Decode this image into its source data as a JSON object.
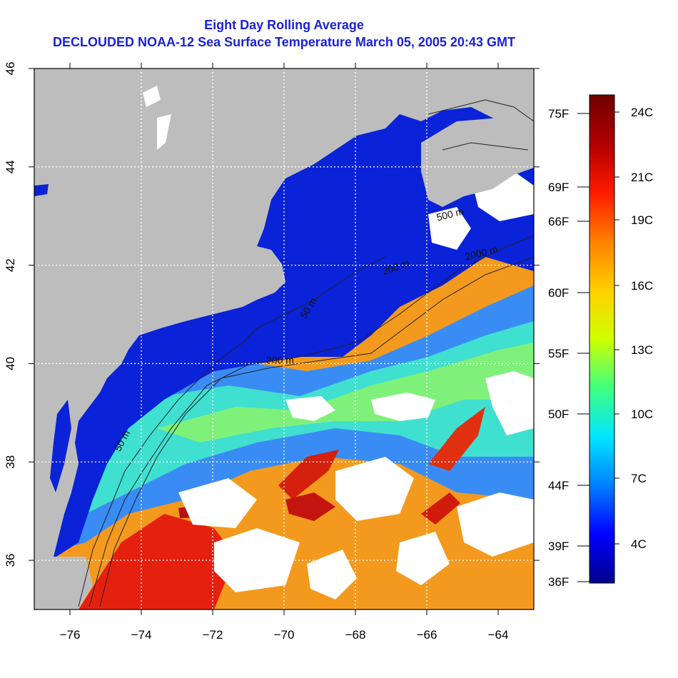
{
  "title_line1": "Eight Day Rolling Average",
  "title_line2": "DECLOUDED NOAA-12 Sea Surface Temperature March 05, 2005 20:43 GMT",
  "colors": {
    "title": "#1a22d6",
    "land": "#bdbdbd",
    "cloud": "#ffffff",
    "gridline": "#ffffff",
    "contour": "#222222"
  },
  "map": {
    "lon_range": [
      -77,
      -63
    ],
    "lat_range": [
      35,
      46
    ],
    "x_ticks": [
      -76,
      -74,
      -72,
      -70,
      -68,
      -66,
      -64
    ],
    "x_tick_labels": [
      "−76",
      "−74",
      "−72",
      "−70",
      "−68",
      "−66",
      "−64"
    ],
    "y_ticks": [
      36,
      38,
      40,
      42,
      44,
      46
    ],
    "y_tick_labels": [
      "36",
      "38",
      "40",
      "42",
      "44",
      "46"
    ],
    "grid_lons": [
      -74,
      -72,
      -70,
      -68,
      -66
    ],
    "grid_lats": [
      36,
      38,
      40,
      42,
      44
    ],
    "contour_labels": [
      {
        "text": "50 m",
        "lon": -74.6,
        "lat": 38.2,
        "rot": -62
      },
      {
        "text": "200 m",
        "lon": -70.5,
        "lat": 40.0,
        "rot": 0
      },
      {
        "text": "2000 m",
        "lon": -64.9,
        "lat": 42.1,
        "rot": -14
      },
      {
        "text": "500 m",
        "lon": -65.7,
        "lat": 42.9,
        "rot": -14
      },
      {
        "text": "50 m",
        "lon": -69.4,
        "lat": 40.9,
        "rot": -58
      },
      {
        "text": "200 m",
        "lon": -67.2,
        "lat": 41.8,
        "rot": -20
      }
    ]
  },
  "colorbar": {
    "celsius_labels": [
      "24C",
      "21C",
      "19C",
      "16C",
      "13C",
      "10C",
      "7C",
      "4C"
    ],
    "fahrenheit_labels": [
      "75F",
      "69F",
      "66F",
      "60F",
      "55F",
      "50F",
      "44F",
      "39F",
      "36F"
    ],
    "stops": [
      "#00008c",
      "#0000ff",
      "#0080ff",
      "#00e6ff",
      "#40ff80",
      "#d0ff00",
      "#ffd000",
      "#ff8000",
      "#ff1a00",
      "#b00000",
      "#700000"
    ]
  }
}
